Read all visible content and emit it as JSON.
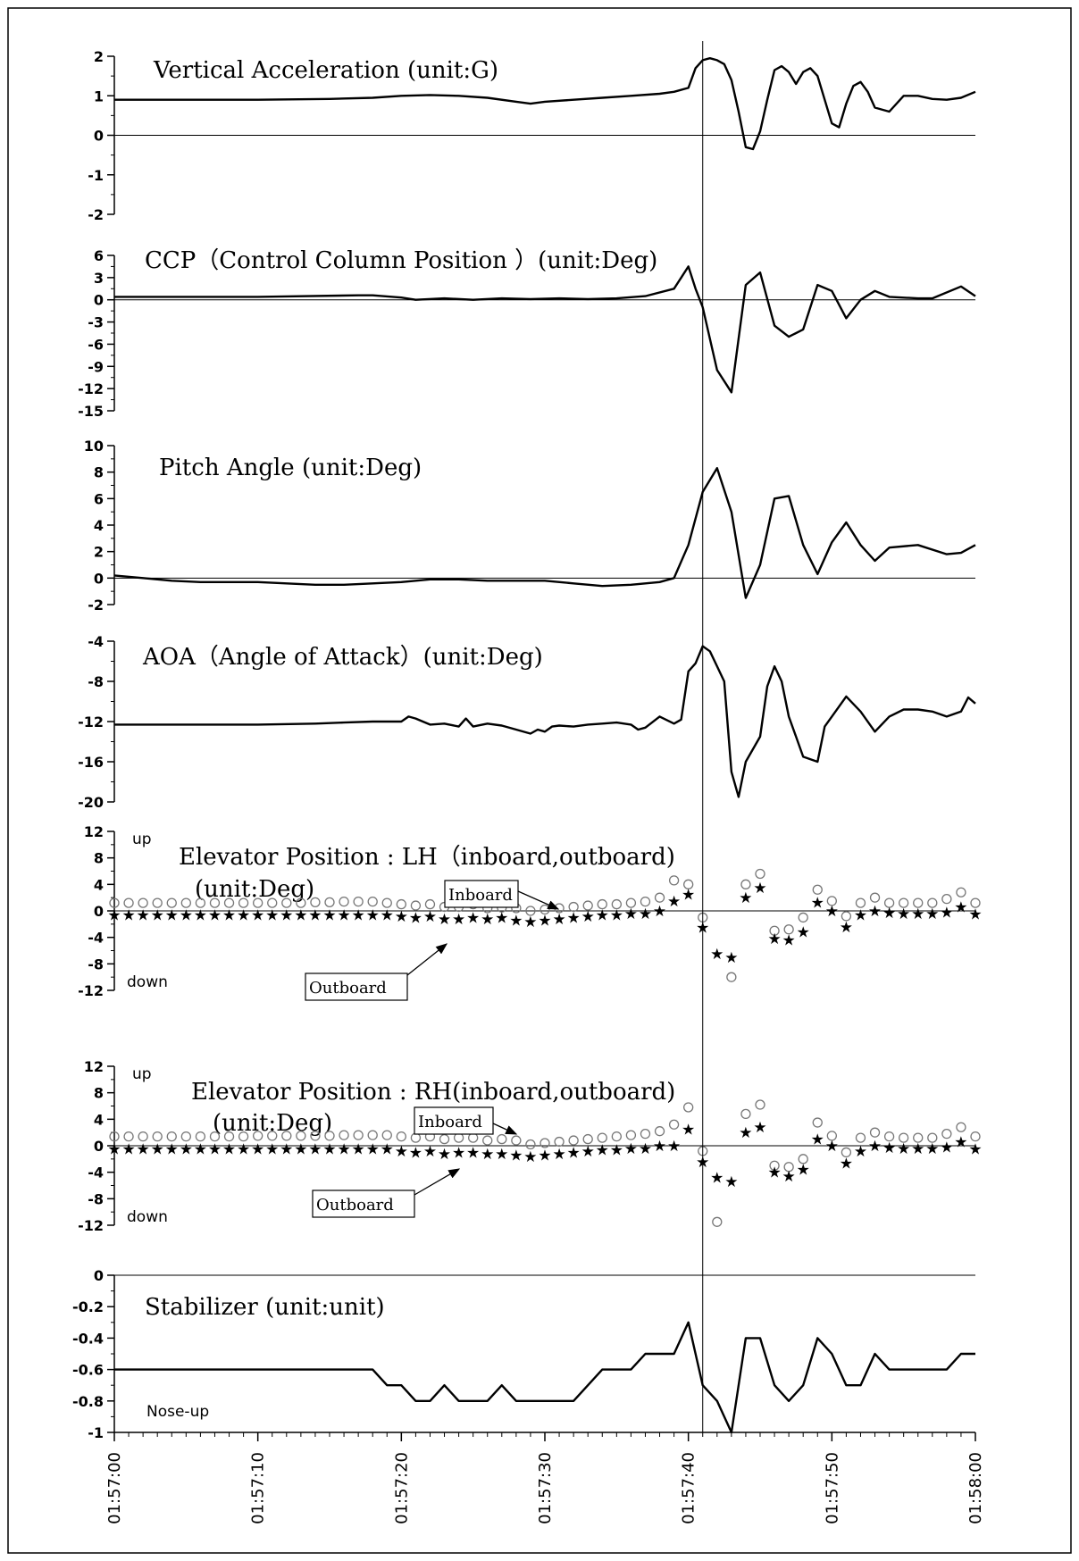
{
  "chart_data": [
    {
      "type": "line",
      "title": "Vertical Acceleration (unit:G)",
      "ylim": [
        -2,
        2
      ],
      "yticks": [
        "2",
        "1",
        "0",
        "-1",
        "-2"
      ],
      "series": [
        {
          "x": [
            0,
            5,
            10,
            15,
            18,
            20,
            22,
            24,
            26,
            28,
            29,
            30,
            32,
            34,
            36,
            38,
            39,
            40,
            40.5,
            41,
            41.5,
            42,
            42.5,
            43,
            43.5,
            44,
            44.5,
            45,
            45.5,
            46,
            46.5,
            47,
            47.5,
            48,
            48.5,
            49,
            49.5,
            50,
            50.5,
            51,
            51.5,
            52,
            52.5,
            53,
            54,
            55,
            56,
            57,
            58,
            59,
            60
          ],
          "y": [
            0.9,
            0.9,
            0.9,
            0.92,
            0.95,
            1.0,
            1.02,
            1.0,
            0.95,
            0.85,
            0.8,
            0.85,
            0.9,
            0.95,
            1.0,
            1.05,
            1.1,
            1.2,
            1.7,
            1.9,
            1.95,
            1.9,
            1.8,
            1.4,
            0.6,
            -0.3,
            -0.35,
            0.1,
            0.9,
            1.65,
            1.75,
            1.6,
            1.3,
            1.6,
            1.7,
            1.5,
            0.9,
            0.3,
            0.2,
            0.8,
            1.25,
            1.35,
            1.1,
            0.7,
            0.6,
            1.0,
            1.0,
            0.92,
            0.9,
            0.95,
            1.1
          ]
        }
      ]
    },
    {
      "type": "line",
      "title": "CCP（Control Column Position ）(unit:Deg)",
      "ylim": [
        -15,
        6
      ],
      "yticks": [
        "6",
        "3",
        "0",
        "-3",
        "-6",
        "-9",
        "-12",
        "-15"
      ],
      "series": [
        {
          "x": [
            0,
            10,
            17,
            18,
            20,
            21,
            23,
            25,
            27,
            29,
            31,
            33,
            35,
            37,
            39,
            40,
            40.5,
            41,
            42,
            43,
            44,
            45,
            46,
            47,
            48,
            49,
            50,
            51,
            52,
            53,
            54,
            56,
            57,
            59,
            60
          ],
          "y": [
            0.4,
            0.4,
            0.6,
            0.6,
            0.3,
            0.0,
            0.2,
            0.0,
            0.2,
            0.1,
            0.2,
            0.1,
            0.2,
            0.5,
            1.5,
            4.5,
            1.5,
            -1.0,
            -9.5,
            -12.5,
            2.0,
            3.7,
            -3.5,
            -5.0,
            -4.0,
            2.0,
            1.2,
            -2.5,
            0.0,
            1.2,
            0.4,
            0.2,
            0.2,
            1.8,
            0.5
          ]
        }
      ]
    },
    {
      "type": "line",
      "title": "Pitch Angle (unit:Deg)",
      "ylim": [
        -2,
        10
      ],
      "yticks": [
        "10",
        "8",
        "6",
        "4",
        "2",
        "0",
        "-2"
      ],
      "series": [
        {
          "x": [
            0,
            2,
            4,
            6,
            8,
            10,
            12,
            14,
            16,
            18,
            20,
            22,
            24,
            26,
            28,
            30,
            32,
            34,
            36,
            38,
            39,
            40,
            41,
            42,
            43,
            44,
            45,
            46,
            47,
            48,
            49,
            50,
            51,
            52,
            53,
            54,
            56,
            58,
            59,
            60
          ],
          "y": [
            0.2,
            0.0,
            -0.2,
            -0.3,
            -0.3,
            -0.3,
            -0.4,
            -0.5,
            -0.5,
            -0.4,
            -0.3,
            -0.1,
            -0.1,
            -0.2,
            -0.2,
            -0.2,
            -0.4,
            -0.6,
            -0.5,
            -0.3,
            0.0,
            2.5,
            6.5,
            8.3,
            5.0,
            -1.5,
            1.0,
            6.0,
            6.2,
            2.5,
            0.3,
            2.7,
            4.2,
            2.5,
            1.3,
            2.3,
            2.5,
            1.8,
            1.9,
            2.5
          ]
        }
      ]
    },
    {
      "type": "line",
      "title": "AOA（Angle of Attack）(unit:Deg)",
      "ylim": [
        -20,
        -4
      ],
      "yticks": [
        "-4",
        "-8",
        "-12",
        "-16",
        "-20"
      ],
      "series": [
        {
          "x": [
            0,
            5,
            10,
            14,
            16,
            18,
            20,
            20.5,
            21,
            21.5,
            22,
            23,
            24,
            24.5,
            25,
            26,
            27,
            28,
            29,
            29.5,
            30,
            30.5,
            31,
            32,
            33,
            34,
            35,
            36,
            36.5,
            37,
            38,
            39,
            39.5,
            40,
            40.5,
            41,
            41.5,
            42,
            42.5,
            43,
            43.5,
            44,
            45,
            45.5,
            46,
            46.5,
            47,
            47.5,
            48,
            49,
            49.5,
            50,
            51,
            52,
            53,
            54,
            55,
            56,
            57,
            58,
            59,
            59.5,
            60
          ],
          "y": [
            -12.3,
            -12.3,
            -12.3,
            -12.2,
            -12.1,
            -12.0,
            -12.0,
            -11.5,
            -11.7,
            -12.0,
            -12.3,
            -12.2,
            -12.5,
            -11.7,
            -12.5,
            -12.2,
            -12.4,
            -12.8,
            -13.2,
            -12.8,
            -13.0,
            -12.5,
            -12.4,
            -12.5,
            -12.3,
            -12.2,
            -12.1,
            -12.3,
            -12.8,
            -12.6,
            -11.5,
            -12.2,
            -11.8,
            -7.0,
            -6.2,
            -4.5,
            -5.0,
            -6.5,
            -8.0,
            -17.0,
            -19.5,
            -16.0,
            -13.5,
            -8.5,
            -6.5,
            -8.0,
            -11.5,
            -13.5,
            -15.5,
            -16.0,
            -12.5,
            -11.5,
            -9.5,
            -11.0,
            -13.0,
            -11.5,
            -10.8,
            -10.8,
            -11.0,
            -11.5,
            -11.0,
            -9.6,
            -10.2
          ]
        }
      ]
    },
    {
      "type": "scatter",
      "title": "Elevator Position : LH（inboard,outboard)",
      "subtitle": "(unit:Deg)",
      "ylim": [
        -12,
        12
      ],
      "yticks": [
        "12",
        "8",
        "4",
        "0",
        "-4",
        "-8",
        "-12"
      ],
      "up_label": "up",
      "down_label": "down",
      "inboard_label": "Inboard",
      "outboard_label": "Outboard",
      "series": [
        {
          "marker": "circle",
          "x": [
            0,
            1,
            2,
            3,
            4,
            5,
            6,
            7,
            8,
            9,
            10,
            11,
            12,
            13,
            14,
            15,
            16,
            17,
            18,
            19,
            20,
            21,
            22,
            23,
            24,
            25,
            26,
            27,
            28,
            29,
            30,
            31,
            32,
            33,
            34,
            35,
            36,
            37,
            38,
            39,
            40,
            41,
            43,
            44,
            45,
            46,
            47,
            48,
            49,
            50,
            51,
            52,
            53,
            54,
            55,
            56,
            57,
            58,
            59,
            60
          ],
          "y": [
            1.2,
            1.2,
            1.2,
            1.2,
            1.2,
            1.2,
            1.2,
            1.2,
            1.2,
            1.2,
            1.2,
            1.2,
            1.2,
            1.2,
            1.3,
            1.3,
            1.4,
            1.4,
            1.4,
            1.2,
            1.0,
            0.8,
            1.0,
            0.6,
            0.6,
            1.0,
            0.4,
            0.5,
            0.4,
            0.0,
            0.2,
            0.4,
            0.6,
            0.8,
            1.0,
            1.0,
            1.2,
            1.4,
            2.0,
            4.6,
            4.0,
            -1.0,
            -10.0,
            4.0,
            5.6,
            -3.0,
            -2.8,
            -1.0,
            3.2,
            1.5,
            -0.8,
            1.2,
            2.0,
            1.2,
            1.2,
            1.2,
            1.2,
            1.8,
            2.8,
            1.2
          ]
        },
        {
          "marker": "star",
          "x": [
            0,
            1,
            2,
            3,
            4,
            5,
            6,
            7,
            8,
            9,
            10,
            11,
            12,
            13,
            14,
            15,
            16,
            17,
            18,
            19,
            20,
            21,
            22,
            23,
            24,
            25,
            26,
            27,
            28,
            29,
            30,
            31,
            32,
            33,
            34,
            35,
            36,
            37,
            38,
            39,
            40,
            41,
            42,
            43,
            44,
            45,
            46,
            47,
            48,
            49,
            50,
            51,
            52,
            53,
            54,
            55,
            56,
            57,
            58,
            59,
            60
          ],
          "y": [
            -0.6,
            -0.6,
            -0.6,
            -0.6,
            -0.6,
            -0.6,
            -0.6,
            -0.6,
            -0.6,
            -0.6,
            -0.6,
            -0.6,
            -0.6,
            -0.6,
            -0.6,
            -0.6,
            -0.6,
            -0.6,
            -0.6,
            -0.6,
            -0.8,
            -1.0,
            -0.8,
            -1.2,
            -1.2,
            -1.0,
            -1.2,
            -1.0,
            -1.4,
            -1.6,
            -1.4,
            -1.2,
            -1.0,
            -0.8,
            -0.6,
            -0.6,
            -0.4,
            -0.4,
            0.0,
            1.5,
            2.5,
            -2.5,
            -6.5,
            -7.0,
            2.0,
            3.5,
            -4.2,
            -4.4,
            -3.2,
            1.3,
            0.0,
            -2.4,
            -0.6,
            0.0,
            -0.3,
            -0.4,
            -0.4,
            -0.4,
            -0.2,
            0.6,
            -0.5
          ]
        }
      ]
    },
    {
      "type": "scatter",
      "title": "Elevator Position : RH(inboard,outboard)",
      "subtitle": "(unit:Deg)",
      "ylim": [
        -12,
        12
      ],
      "yticks": [
        "12",
        "8",
        "4",
        "0",
        "-4",
        "-8",
        "-12"
      ],
      "up_label": "up",
      "down_label": "down",
      "inboard_label": "Inboard",
      "outboard_label": "Outboard",
      "series": [
        {
          "marker": "circle",
          "x": [
            0,
            1,
            2,
            3,
            4,
            5,
            6,
            7,
            8,
            9,
            10,
            11,
            12,
            13,
            14,
            15,
            16,
            17,
            18,
            19,
            20,
            21,
            22,
            23,
            24,
            25,
            26,
            27,
            28,
            29,
            30,
            31,
            32,
            33,
            34,
            35,
            36,
            37,
            38,
            39,
            40,
            41,
            42,
            44,
            45,
            46,
            47,
            48,
            49,
            50,
            51,
            52,
            53,
            54,
            55,
            56,
            57,
            58,
            59,
            60
          ],
          "y": [
            1.4,
            1.4,
            1.4,
            1.4,
            1.4,
            1.4,
            1.4,
            1.4,
            1.4,
            1.4,
            1.5,
            1.5,
            1.5,
            1.5,
            1.5,
            1.5,
            1.6,
            1.6,
            1.6,
            1.6,
            1.4,
            1.2,
            1.4,
            1.0,
            1.2,
            1.2,
            0.8,
            1.0,
            0.8,
            0.2,
            0.4,
            0.6,
            0.8,
            1.0,
            1.2,
            1.4,
            1.6,
            1.8,
            2.2,
            3.2,
            5.8,
            -0.8,
            -11.5,
            4.8,
            6.2,
            -3.0,
            -3.2,
            -2.0,
            3.5,
            1.5,
            -1.0,
            1.2,
            2.0,
            1.4,
            1.2,
            1.2,
            1.2,
            1.8,
            2.8,
            1.4
          ]
        },
        {
          "marker": "star",
          "x": [
            0,
            1,
            2,
            3,
            4,
            5,
            6,
            7,
            8,
            9,
            10,
            11,
            12,
            13,
            14,
            15,
            16,
            17,
            18,
            19,
            20,
            21,
            22,
            23,
            24,
            25,
            26,
            27,
            28,
            29,
            30,
            31,
            32,
            33,
            34,
            35,
            36,
            37,
            38,
            39,
            40,
            41,
            42,
            43,
            44,
            45,
            46,
            47,
            48,
            49,
            50,
            51,
            52,
            53,
            54,
            55,
            56,
            57,
            58,
            59,
            60
          ],
          "y": [
            -0.5,
            -0.5,
            -0.5,
            -0.5,
            -0.5,
            -0.5,
            -0.5,
            -0.5,
            -0.5,
            -0.5,
            -0.5,
            -0.5,
            -0.5,
            -0.5,
            -0.5,
            -0.5,
            -0.5,
            -0.5,
            -0.5,
            -0.5,
            -0.8,
            -1.0,
            -0.8,
            -1.2,
            -1.0,
            -1.0,
            -1.2,
            -1.2,
            -1.4,
            -1.6,
            -1.4,
            -1.2,
            -1.0,
            -0.8,
            -0.6,
            -0.6,
            -0.4,
            -0.4,
            0.0,
            0.0,
            2.5,
            -2.4,
            -4.8,
            -5.4,
            2.0,
            2.8,
            -4.0,
            -4.6,
            -3.6,
            1.0,
            0.0,
            -2.6,
            -0.8,
            0.0,
            -0.3,
            -0.4,
            -0.4,
            -0.4,
            -0.2,
            0.6,
            -0.5
          ]
        }
      ]
    },
    {
      "type": "line",
      "title": "Stabilizer (unit:unit)",
      "ylim": [
        -1,
        0
      ],
      "yticks": [
        "0",
        "-0.2",
        "-0.4",
        "-0.6",
        "-0.8",
        "-1"
      ],
      "note": "Nose-up",
      "series": [
        {
          "x": [
            0,
            10,
            18,
            19,
            20,
            21,
            22,
            23,
            24,
            25,
            26,
            27,
            28,
            29,
            30,
            31,
            32,
            33,
            34,
            35,
            36,
            37,
            38,
            39,
            40,
            41,
            42,
            43,
            44,
            45,
            46,
            47,
            48,
            49,
            50,
            51,
            52,
            53,
            54,
            55,
            56,
            57,
            58,
            59,
            60
          ],
          "y": [
            -0.6,
            -0.6,
            -0.6,
            -0.7,
            -0.7,
            -0.8,
            -0.8,
            -0.7,
            -0.8,
            -0.8,
            -0.8,
            -0.7,
            -0.8,
            -0.8,
            -0.8,
            -0.8,
            -0.8,
            -0.7,
            -0.6,
            -0.6,
            -0.6,
            -0.5,
            -0.5,
            -0.5,
            -0.3,
            -0.7,
            -0.8,
            -1.0,
            -0.4,
            -0.4,
            -0.7,
            -0.8,
            -0.7,
            -0.4,
            -0.5,
            -0.7,
            -0.7,
            -0.5,
            -0.6,
            -0.6,
            -0.6,
            -0.6,
            -0.6,
            -0.5,
            -0.5
          ]
        }
      ]
    }
  ],
  "x_axis": {
    "range": [
      0,
      60
    ],
    "unit": "seconds after 01:57:00",
    "tick_labels": [
      "01:57:00",
      "01:57:10",
      "01:57:20",
      "01:57:30",
      "01:57:40",
      "01:57:50",
      "01:58:00"
    ],
    "marker_x": 41
  }
}
